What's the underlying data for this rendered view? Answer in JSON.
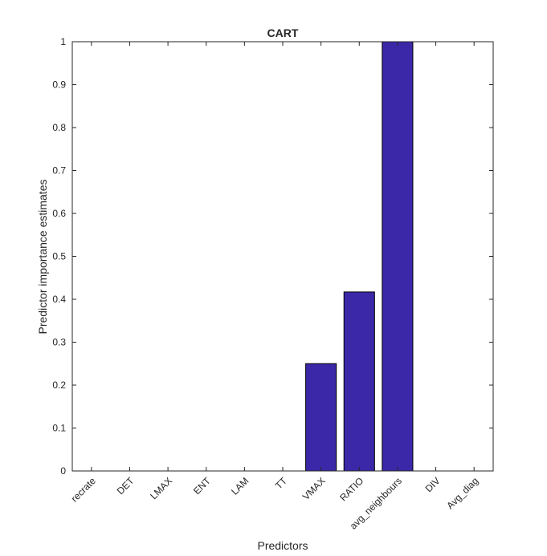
{
  "chart_data": {
    "type": "bar",
    "title": "CART",
    "xlabel": "Predictors",
    "ylabel": "Predictor importance estimates",
    "categories": [
      "recrate",
      "DET",
      "LMAX",
      "ENT",
      "LAM",
      "TT",
      "VMAX",
      "RATIO",
      "avg_neighbours",
      "DIV",
      "Avg_diag"
    ],
    "values": [
      0,
      0,
      0,
      0,
      0,
      0,
      0.25,
      0.417,
      1,
      0,
      0
    ],
    "ylim": [
      0,
      1
    ],
    "yticks": [
      "0",
      "0.1",
      "0.2",
      "0.3",
      "0.4",
      "0.5",
      "0.6",
      "0.7",
      "0.8",
      "0.9",
      "1"
    ],
    "grid": false,
    "bar_color": "#3b28a8"
  }
}
